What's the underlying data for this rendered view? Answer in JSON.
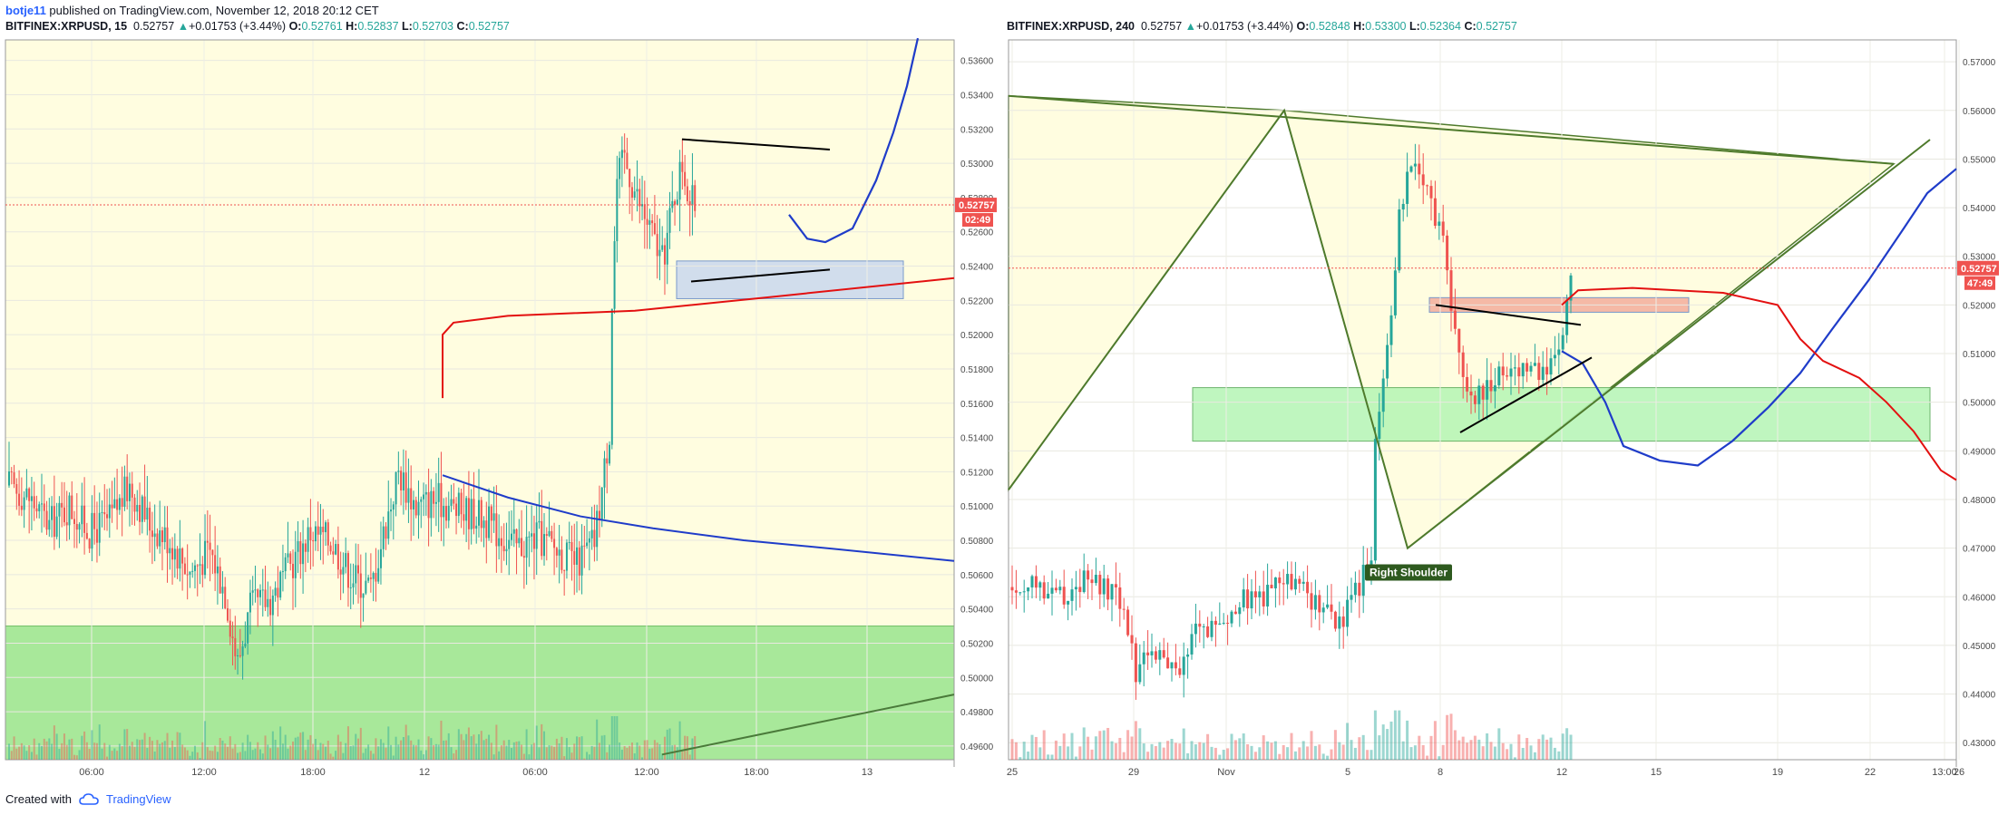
{
  "topbar": {
    "author": "botje11",
    "published": "published on TradingView.com, November 12, 2018 20:12 CET"
  },
  "footer": {
    "created_with": "Created with",
    "brand": "TradingView"
  },
  "colors": {
    "up": "#26a69a",
    "down": "#ef5350",
    "price_label": "#ef5350",
    "accent": "#2962ff"
  },
  "icons": {
    "logo": "tradingview-cloud-icon",
    "up_arrow": "triangle-up-icon"
  },
  "chart_data": [
    {
      "type": "candlestick",
      "header": {
        "symbol": "BITFINEX:XRPUSD, 15",
        "last": "0.52757",
        "change": "+0.01753 (+3.44%)",
        "o_label": "O:",
        "o": "0.52761",
        "h_label": "H:",
        "h": "0.52837",
        "l_label": "L:",
        "l": "0.52703",
        "c_label": "C:",
        "c": "0.52757"
      },
      "ylim": [
        0.4952,
        0.5372
      ],
      "yticks": [
        "0.53600",
        "0.53400",
        "0.53200",
        "0.53000",
        "0.52800",
        "0.52600",
        "0.52400",
        "0.52200",
        "0.52000",
        "0.51800",
        "0.51600",
        "0.51400",
        "0.51200",
        "0.51000",
        "0.50800",
        "0.50600",
        "0.50400",
        "0.50200",
        "0.50000",
        "0.49800",
        "0.49600"
      ],
      "ytick_values": [
        0.536,
        0.534,
        0.532,
        0.53,
        0.528,
        0.526,
        0.524,
        0.522,
        0.52,
        0.518,
        0.516,
        0.514,
        0.512,
        0.51,
        0.508,
        0.506,
        0.504,
        0.502,
        0.5,
        0.498,
        0.496
      ],
      "xticks": [
        "06:00",
        "12:00",
        "18:00",
        "12",
        "06:00",
        "12:00",
        "18:00",
        "13"
      ],
      "last_price_label": "0.52757",
      "countdown_label": "02:49",
      "annotations": [],
      "anchor_closes": [
        [
          0,
          0.5112
        ],
        [
          8,
          0.5105
        ],
        [
          16,
          0.5089
        ],
        [
          24,
          0.51
        ],
        [
          32,
          0.5085
        ],
        [
          40,
          0.5092
        ],
        [
          48,
          0.5112
        ],
        [
          56,
          0.509
        ],
        [
          64,
          0.508
        ],
        [
          72,
          0.5062
        ],
        [
          80,
          0.5074
        ],
        [
          86,
          0.505
        ],
        [
          91,
          0.5008
        ],
        [
          96,
          0.504
        ],
        [
          104,
          0.5046
        ],
        [
          112,
          0.5065
        ],
        [
          120,
          0.5085
        ],
        [
          128,
          0.508
        ],
        [
          136,
          0.506
        ],
        [
          144,
          0.5052
        ],
        [
          150,
          0.509
        ],
        [
          155,
          0.512
        ],
        [
          162,
          0.51
        ],
        [
          170,
          0.5104
        ],
        [
          178,
          0.5098
        ],
        [
          186,
          0.5096
        ],
        [
          194,
          0.5086
        ],
        [
          202,
          0.5076
        ],
        [
          210,
          0.5082
        ],
        [
          218,
          0.5075
        ],
        [
          226,
          0.5066
        ],
        [
          233,
          0.508
        ],
        [
          236,
          0.511
        ],
        [
          239,
          0.5145
        ],
        [
          240,
          0.522
        ],
        [
          242,
          0.529
        ],
        [
          245,
          0.5303
        ],
        [
          250,
          0.528
        ],
        [
          255,
          0.5262
        ],
        [
          260,
          0.5242
        ],
        [
          265,
          0.5282
        ],
        [
          268,
          0.53
        ],
        [
          271,
          0.5278
        ],
        [
          273,
          0.5276
        ]
      ]
    },
    {
      "type": "candlestick",
      "header": {
        "symbol": "BITFINEX:XRPUSD, 240",
        "last": "0.52757",
        "change": "+0.01753 (+3.44%)",
        "o_label": "O:",
        "o": "0.52848",
        "h_label": "H:",
        "h": "0.53300",
        "l_label": "L:",
        "l": "0.52364",
        "c_label": "C:",
        "c": "0.52757"
      },
      "ylim": [
        0.4265,
        0.5745
      ],
      "yticks": [
        "0.57000",
        "0.56000",
        "0.55000",
        "0.54000",
        "0.53000",
        "0.52000",
        "0.51000",
        "0.50000",
        "0.49000",
        "0.48000",
        "0.47000",
        "0.46000",
        "0.45000",
        "0.44000",
        "0.43000"
      ],
      "ytick_values": [
        0.57,
        0.56,
        0.55,
        0.54,
        0.53,
        0.52,
        0.51,
        0.5,
        0.49,
        0.48,
        0.47,
        0.46,
        0.45,
        0.44,
        0.43
      ],
      "xticks": [
        "25",
        "29",
        "Nov",
        "5",
        "8",
        "12",
        "15",
        "19",
        "22",
        "26",
        "13:00"
      ],
      "last_price_label": "0.52757",
      "countdown_label": "47:49",
      "annotations": [
        {
          "text": "Right Shoulder"
        }
      ],
      "anchor_closes": [
        [
          0,
          0.462
        ],
        [
          6,
          0.4625
        ],
        [
          12,
          0.4605
        ],
        [
          18,
          0.463
        ],
        [
          24,
          0.461
        ],
        [
          28,
          0.458
        ],
        [
          31,
          0.444
        ],
        [
          34,
          0.45
        ],
        [
          38,
          0.447
        ],
        [
          42,
          0.443
        ],
        [
          46,
          0.453
        ],
        [
          52,
          0.455
        ],
        [
          58,
          0.459
        ],
        [
          63,
          0.46
        ],
        [
          68,
          0.463
        ],
        [
          73,
          0.461
        ],
        [
          78,
          0.457
        ],
        [
          83,
          0.455
        ],
        [
          86,
          0.461
        ],
        [
          88,
          0.464
        ],
        [
          90,
          0.47
        ],
        [
          91,
          0.49
        ],
        [
          93,
          0.505
        ],
        [
          95,
          0.52
        ],
        [
          97,
          0.538
        ],
        [
          100,
          0.551
        ],
        [
          102,
          0.546
        ],
        [
          105,
          0.54
        ],
        [
          108,
          0.532
        ],
        [
          110,
          0.52
        ],
        [
          113,
          0.505
        ],
        [
          116,
          0.5
        ],
        [
          119,
          0.504
        ],
        [
          122,
          0.506
        ],
        [
          126,
          0.507
        ],
        [
          130,
          0.508
        ],
        [
          133,
          0.506
        ],
        [
          136,
          0.508
        ],
        [
          138,
          0.516
        ],
        [
          140,
          0.5276
        ]
      ]
    }
  ]
}
